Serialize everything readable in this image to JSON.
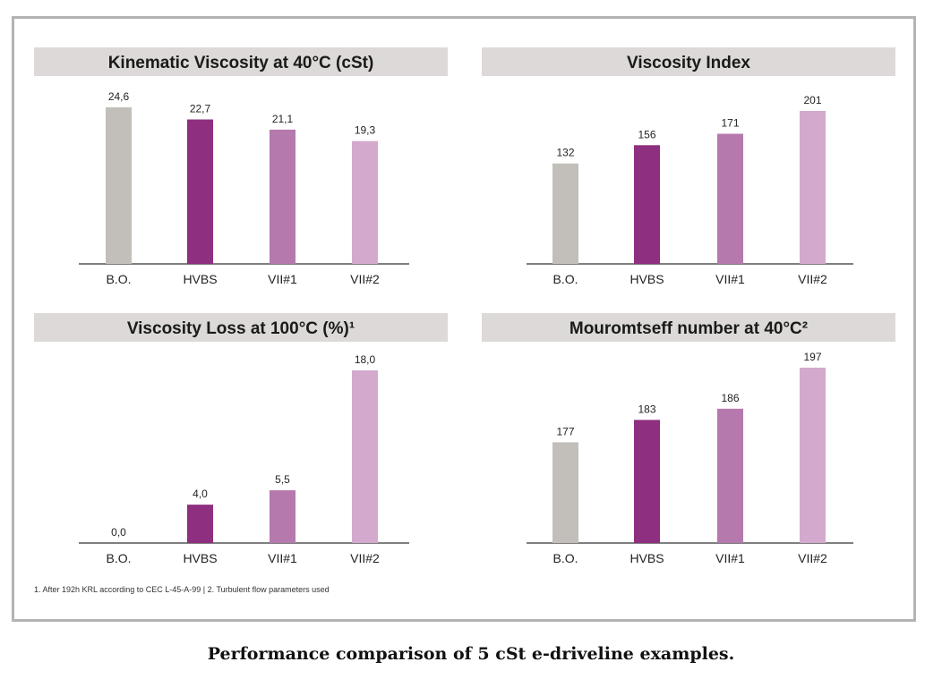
{
  "caption": "Performance comparison of 5 cSt e-driveline examples.",
  "footnote": "1. After 192h KRL according to CEC L-45-A-99  |  2. Turbulent flow parameters used",
  "colors": {
    "panel_header_bg": "#dcd9d8",
    "axis": "#555555",
    "bar_colors": [
      "#c2bfba",
      "#8e2f7f",
      "#b679ad",
      "#d3a9cd"
    ]
  },
  "chart_data": [
    {
      "type": "bar",
      "title": "Kinematic Viscosity at 40°C (cSt)",
      "categories": [
        "B.O.",
        "HVBS",
        "VII#1",
        "VII#2"
      ],
      "values": [
        24.6,
        22.7,
        21.1,
        19.3
      ],
      "value_labels": [
        "24,6",
        "22,7",
        "21,1",
        "19,3"
      ],
      "ylim": [
        0,
        24.6
      ]
    },
    {
      "type": "bar",
      "title": "Viscosity Index",
      "categories": [
        "B.O.",
        "HVBS",
        "VII#1",
        "VII#2"
      ],
      "values": [
        132,
        156,
        171,
        201
      ],
      "value_labels": [
        "132",
        "156",
        "171",
        "201"
      ],
      "ylim": [
        0,
        201
      ]
    },
    {
      "type": "bar",
      "title": "Viscosity Loss at 100°C (%)¹",
      "categories": [
        "B.O.",
        "HVBS",
        "VII#1",
        "VII#2"
      ],
      "values": [
        0.0,
        4.0,
        5.5,
        18.0
      ],
      "value_labels": [
        "0,0",
        "4,0",
        "5,5",
        "18,0"
      ],
      "ylim": [
        0,
        18.0
      ]
    },
    {
      "type": "bar",
      "title": "Mouromtseff number at 40°C²",
      "categories": [
        "B.O.",
        "HVBS",
        "VII#1",
        "VII#2"
      ],
      "values": [
        177,
        183,
        186,
        197
      ],
      "value_labels": [
        "177",
        "183",
        "186",
        "197"
      ],
      "ylim": [
        150,
        197
      ]
    }
  ]
}
